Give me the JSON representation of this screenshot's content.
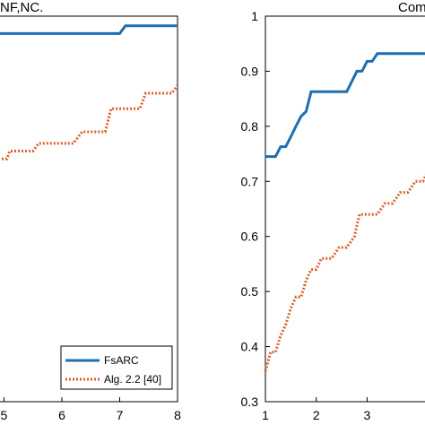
{
  "chart_data": [
    {
      "type": "line",
      "title": "NF,NC.",
      "xlim": [
        4.9,
        8
      ],
      "ylim": [
        0,
        1
      ],
      "x_ticks": [
        5,
        6,
        7,
        8
      ],
      "x_tick_labels": [
        "5",
        "6",
        "7",
        "8"
      ],
      "series": [
        {
          "name": "FsARC",
          "style": "solid",
          "color": "#1f6fb0",
          "x": [
            4.9,
            7.0,
            7.1,
            8.0
          ],
          "y": [
            0.955,
            0.955,
            0.975,
            0.975
          ]
        },
        {
          "name": "Alg. 2.2 [40]",
          "style": "dotted",
          "color": "#d9622b",
          "x": [
            4.9,
            5.05,
            5.1,
            5.5,
            5.6,
            6.2,
            6.35,
            6.75,
            6.85,
            7.35,
            7.45,
            7.9,
            8.0
          ],
          "y": [
            0.63,
            0.63,
            0.65,
            0.65,
            0.67,
            0.67,
            0.7,
            0.7,
            0.76,
            0.76,
            0.8,
            0.8,
            0.82
          ]
        }
      ],
      "legend": {
        "placement": "bottom-right",
        "entries": [
          "FsARC",
          "Alg. 2.2 [40]"
        ]
      },
      "grid": false
    },
    {
      "type": "line",
      "title": "Com",
      "xlim": [
        1,
        4.35
      ],
      "ylim": [
        0.3,
        1.0
      ],
      "x_ticks": [
        1,
        2,
        3
      ],
      "x_tick_labels": [
        "1",
        "2",
        "3"
      ],
      "y_ticks": [
        0.3,
        0.4,
        0.5,
        0.6,
        0.7,
        0.8,
        0.9,
        1.0
      ],
      "y_tick_labels": [
        "0.3",
        "0.4",
        "0.5",
        "0.6",
        "0.7",
        "0.8",
        "0.9",
        "1"
      ],
      "series": [
        {
          "name": "FsARC",
          "style": "solid",
          "color": "#1f6fb0",
          "x": [
            1.0,
            1.2,
            1.3,
            1.4,
            1.45,
            1.5,
            1.6,
            1.7,
            1.8,
            1.9,
            2.6,
            2.8,
            2.9,
            3.0,
            3.1,
            3.2,
            4.35
          ],
          "y": [
            0.745,
            0.745,
            0.763,
            0.763,
            0.772,
            0.781,
            0.8,
            0.818,
            0.827,
            0.863,
            0.863,
            0.9,
            0.9,
            0.918,
            0.918,
            0.932,
            0.932
          ]
        },
        {
          "name": "Alg. 2.2 [40]",
          "style": "dotted",
          "color": "#d9622b",
          "x": [
            1.0,
            1.1,
            1.2,
            1.3,
            1.4,
            1.5,
            1.6,
            1.7,
            1.8,
            1.9,
            2.0,
            2.1,
            2.3,
            2.45,
            2.6,
            2.75,
            2.85,
            3.0,
            3.2,
            3.35,
            3.5,
            3.65,
            3.8,
            3.95,
            4.1,
            4.2,
            4.35
          ],
          "y": [
            0.355,
            0.39,
            0.39,
            0.42,
            0.44,
            0.47,
            0.49,
            0.49,
            0.52,
            0.54,
            0.54,
            0.56,
            0.56,
            0.58,
            0.58,
            0.6,
            0.64,
            0.64,
            0.64,
            0.66,
            0.66,
            0.68,
            0.68,
            0.7,
            0.7,
            0.72,
            0.74
          ]
        }
      ],
      "grid": false
    }
  ]
}
